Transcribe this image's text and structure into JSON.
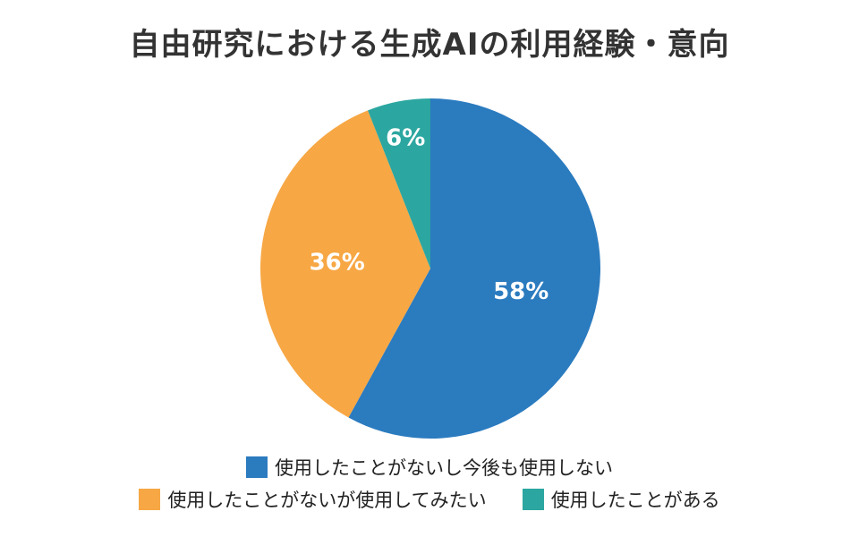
{
  "chart_data": {
    "type": "pie",
    "title": "自由研究における生成AIの利用経験・意向",
    "slices": [
      {
        "name": "使用したことがないし今後も使用しない",
        "value": 58,
        "label": "58%",
        "color": "#2B7BBF"
      },
      {
        "name": "使用したことがないが使用してみたい",
        "value": 36,
        "label": "36%",
        "color": "#F7A744"
      },
      {
        "name": "使用したことがある",
        "value": 6,
        "label": "6%",
        "color": "#2CA6A0"
      }
    ],
    "legend_position": "bottom"
  }
}
